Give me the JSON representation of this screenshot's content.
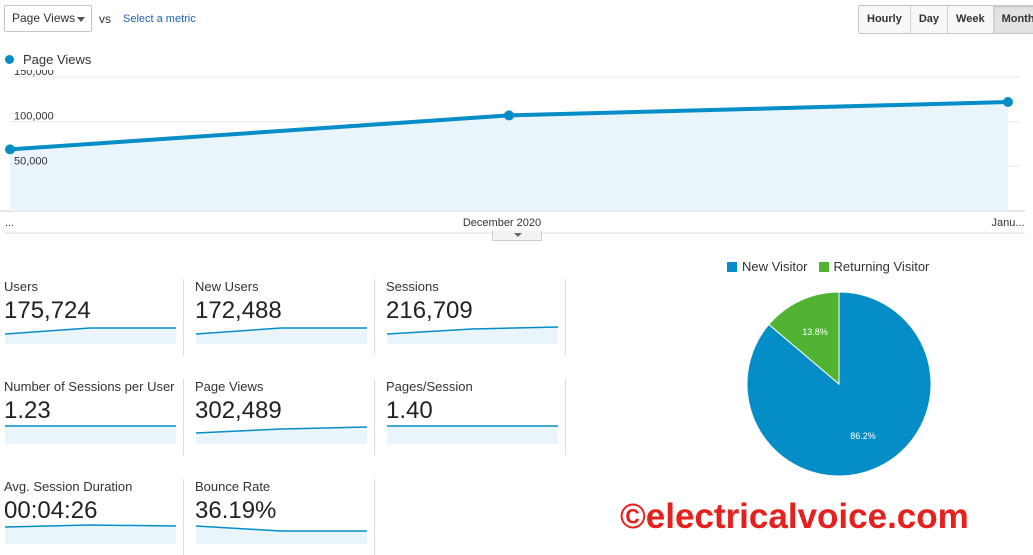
{
  "toolbar": {
    "metric_select": "Page Views",
    "vs_label": "vs",
    "select_metric_link": "Select a metric",
    "periods": [
      "Hourly",
      "Day",
      "Week",
      "Month"
    ],
    "active_period": "Month"
  },
  "colors": {
    "series": "#058dc7",
    "area_fill": "#e9f4fb",
    "new_visitor": "#058dc7",
    "returning_visitor": "#50b432",
    "watermark": "#e5201d"
  },
  "chart_data": [
    {
      "type": "line",
      "series": [
        {
          "name": "Page Views",
          "values": [
            69000,
            107000,
            122000
          ]
        }
      ],
      "x_tick_labels": [
        "...",
        "December 2020",
        "Janu..."
      ],
      "y_tick_labels": [
        "150,000",
        "100,000",
        "50,000"
      ],
      "ylim": [
        0,
        150000
      ],
      "grid": true,
      "legend": "top-left"
    },
    {
      "type": "pie",
      "categories": [
        "New Visitor",
        "Returning Visitor"
      ],
      "values": [
        86.2,
        13.8
      ],
      "data_labels": [
        "86.2%",
        "13.8%"
      ],
      "legend": "top"
    }
  ],
  "scorecards": [
    {
      "label": "Users",
      "value": "175,724"
    },
    {
      "label": "New Users",
      "value": "172,488"
    },
    {
      "label": "Sessions",
      "value": "216,709"
    },
    {
      "label": "Number of Sessions per User",
      "value": "1.23"
    },
    {
      "label": "Page Views",
      "value": "302,489"
    },
    {
      "label": "Pages/Session",
      "value": "1.40"
    },
    {
      "label": "Avg. Session Duration",
      "value": "00:04:26"
    },
    {
      "label": "Bounce Rate",
      "value": "36.19%"
    }
  ],
  "watermark": "©electricalvoice.com"
}
